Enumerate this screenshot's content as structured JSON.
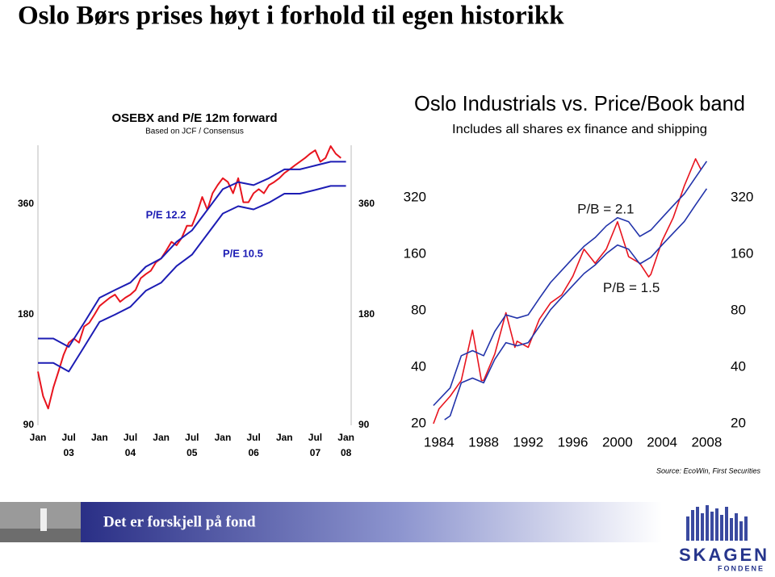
{
  "title": "Oslo Børs prises høyt i forhold til egen historikk",
  "footer": {
    "slogan": "Det er forskjell på fond",
    "logo": "SKAGEN",
    "logo_sub": "FONDENE"
  },
  "chart_data": [
    {
      "type": "line",
      "title": "OSEBX and P/E 12m forward",
      "subtitle": "Based on JCF / Consensus",
      "log_y": true,
      "ylim": [
        90,
        520
      ],
      "yticks": [
        90,
        180,
        360
      ],
      "xlim": [
        "2003-01",
        "2008-02"
      ],
      "xticks": [
        {
          "value": "2003-01",
          "label": "Jan"
        },
        {
          "value": "2003-07",
          "label": "Jul"
        },
        {
          "value": "2004-01",
          "label": "Jan"
        },
        {
          "value": "2004-07",
          "label": "Jul"
        },
        {
          "value": "2005-01",
          "label": "Jan"
        },
        {
          "value": "2005-07",
          "label": "Jul"
        },
        {
          "value": "2006-01",
          "label": "Jan"
        },
        {
          "value": "2006-07",
          "label": "Jul"
        },
        {
          "value": "2007-01",
          "label": "Jan"
        },
        {
          "value": "2007-07",
          "label": "Jul"
        },
        {
          "value": "2008-01",
          "label": "Jan"
        }
      ],
      "xtick_years": [
        {
          "value": "2003-07",
          "label": "03"
        },
        {
          "value": "2004-07",
          "label": "04"
        },
        {
          "value": "2005-07",
          "label": "05"
        },
        {
          "value": "2006-07",
          "label": "06"
        },
        {
          "value": "2007-07",
          "label": "07"
        },
        {
          "value": "2008-01",
          "label": "08"
        }
      ],
      "annotations": [
        {
          "text": "P/E 12.2",
          "x": "2004-10",
          "y": 335
        },
        {
          "text": "P/E 10.5",
          "x": "2006-01",
          "y": 263
        }
      ],
      "series": [
        {
          "color": "#e8141e",
          "x": [
            "2003-01",
            "2003-02",
            "2003-03",
            "2003-04",
            "2003-05",
            "2003-06",
            "2003-07",
            "2003-08",
            "2003-09",
            "2003-10",
            "2003-11",
            "2003-12",
            "2004-01",
            "2004-02",
            "2004-03",
            "2004-04",
            "2004-05",
            "2004-06",
            "2004-07",
            "2004-08",
            "2004-09",
            "2004-10",
            "2004-11",
            "2004-12",
            "2005-01",
            "2005-02",
            "2005-03",
            "2005-04",
            "2005-05",
            "2005-06",
            "2005-07",
            "2005-08",
            "2005-09",
            "2005-10",
            "2005-11",
            "2005-12",
            "2006-01",
            "2006-02",
            "2006-03",
            "2006-04",
            "2006-05",
            "2006-06",
            "2006-07",
            "2006-08",
            "2006-09",
            "2006-10",
            "2006-11",
            "2006-12",
            "2007-01",
            "2007-02",
            "2007-03",
            "2007-04",
            "2007-05",
            "2007-06",
            "2007-07",
            "2007-08",
            "2007-09",
            "2007-10",
            "2007-11",
            "2007-12"
          ],
          "values": [
            126,
            108,
            100,
            114,
            126,
            140,
            151,
            155,
            151,
            167,
            171,
            180,
            190,
            195,
            200,
            204,
            195,
            200,
            204,
            210,
            226,
            232,
            237,
            250,
            256,
            269,
            284,
            278,
            291,
            314,
            314,
            341,
            376,
            347,
            385,
            405,
            423,
            413,
            385,
            423,
            364,
            364,
            385,
            395,
            385,
            405,
            413,
            423,
            437,
            447,
            458,
            469,
            480,
            493,
            504,
            469,
            480,
            517,
            493,
            480
          ]
        },
        {
          "color": "#1c1cb4",
          "x": [
            "2003-01",
            "2003-04",
            "2003-07",
            "2003-10",
            "2004-01",
            "2004-04",
            "2004-07",
            "2004-10",
            "2005-01",
            "2005-04",
            "2005-07",
            "2005-10",
            "2006-01",
            "2006-04",
            "2006-07",
            "2006-10",
            "2007-01",
            "2007-04",
            "2007-07",
            "2007-10",
            "2008-01"
          ],
          "values": [
            155,
            155,
            147,
            171,
            200,
            210,
            220,
            243,
            256,
            284,
            305,
            347,
            395,
            413,
            405,
            423,
            447,
            447,
            458,
            469,
            469
          ]
        },
        {
          "color": "#1c1cb4",
          "x": [
            "2003-01",
            "2003-04",
            "2003-07",
            "2003-10",
            "2004-01",
            "2004-04",
            "2004-07",
            "2004-10",
            "2005-01",
            "2005-04",
            "2005-07",
            "2005-10",
            "2006-01",
            "2006-04",
            "2006-07",
            "2006-10",
            "2007-01",
            "2007-04",
            "2007-07",
            "2007-10",
            "2008-01"
          ],
          "values": [
            133,
            133,
            126,
            147,
            172,
            180,
            189,
            209,
            220,
            244,
            262,
            298,
            339,
            355,
            348,
            363,
            384,
            384,
            393,
            403,
            403
          ]
        }
      ]
    },
    {
      "type": "line",
      "title": "Oslo Industrials vs. Price/Book band",
      "subtitle": "Includes all shares ex finance and shipping",
      "log_y": true,
      "ylim": [
        20,
        540
      ],
      "yticks": [
        20,
        40,
        80,
        160,
        320
      ],
      "xlim": [
        1983,
        2010
      ],
      "xticks": [
        1984,
        1988,
        1992,
        1996,
        2000,
        2004,
        2008
      ],
      "source": "Source: EcoWin, First Securities",
      "annotations": [
        {
          "text": "P/B = 2.1",
          "x": 1996.4,
          "y": 275
        },
        {
          "text": "P/B = 1.5",
          "x": 1998.7,
          "y": 105
        }
      ],
      "series": [
        {
          "color": "#e8141e",
          "x": [
            1983.5,
            1984,
            1985,
            1986,
            1987,
            1987.8,
            1988,
            1989,
            1990,
            1990.8,
            1991,
            1992,
            1993,
            1994,
            1995,
            1996,
            1997,
            1998,
            1999,
            2000,
            2001,
            2002,
            2002.8,
            2003,
            2004,
            2005,
            2006,
            2007,
            2007.5
          ],
          "values": [
            20,
            24,
            28,
            34,
            63,
            34,
            34,
            47,
            78,
            51,
            55,
            51,
            72,
            88,
            97,
            122,
            170,
            143,
            170,
            238,
            155,
            143,
            121,
            125,
            188,
            250,
            370,
            515,
            450
          ]
        },
        {
          "color": "#2233aa",
          "x": [
            1983.5,
            1985,
            1986,
            1987,
            1988,
            1989,
            1990,
            1991,
            1992,
            1993,
            1994,
            1995,
            1996,
            1997,
            1998,
            1999,
            2000,
            2001,
            2002,
            2003,
            2004,
            2005,
            2006,
            2007,
            2008
          ],
          "values": [
            25,
            31,
            46,
            49,
            46,
            62,
            76,
            73,
            76,
            93,
            113,
            131,
            152,
            176,
            196,
            226,
            250,
            238,
            199,
            215,
            250,
            290,
            335,
            410,
            500
          ]
        },
        {
          "color": "#2233aa",
          "x": [
            1984.5,
            1985,
            1986,
            1987,
            1988,
            1989,
            1990,
            1991,
            1992,
            1993,
            1994,
            1995,
            1996,
            1997,
            1998,
            1999,
            2000,
            2001,
            2002,
            2003,
            2004,
            2005,
            2006,
            2007,
            2008
          ],
          "values": [
            21,
            22,
            33,
            35,
            33,
            44,
            54,
            52,
            54,
            66,
            81,
            94,
            109,
            126,
            140,
            161,
            179,
            170,
            142,
            154,
            179,
            207,
            239,
            293,
            357
          ]
        }
      ]
    }
  ]
}
